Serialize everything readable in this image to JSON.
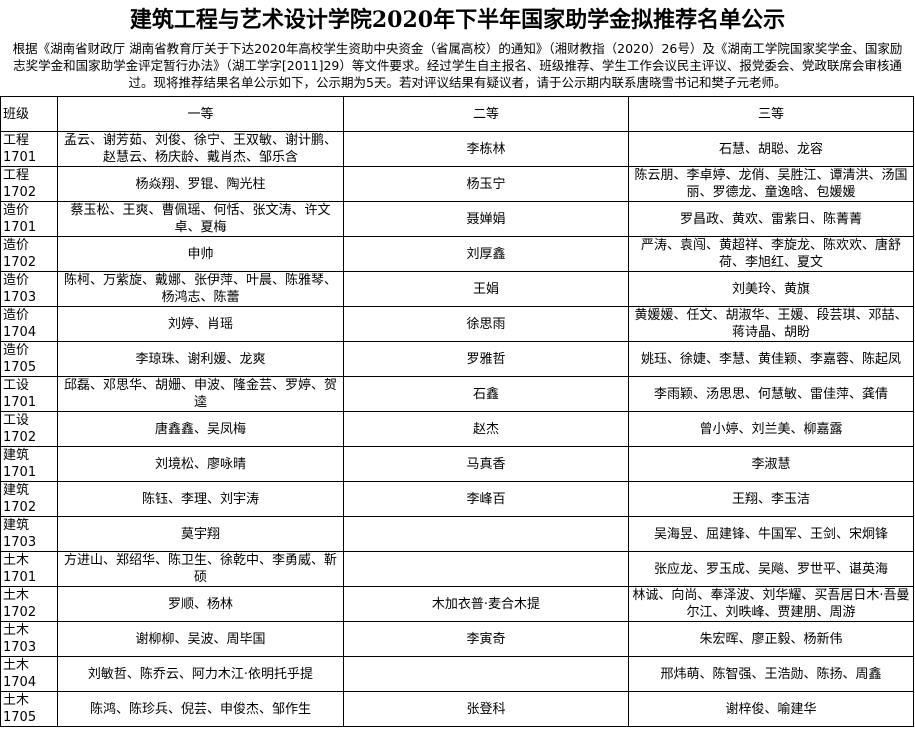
{
  "header": {
    "title": "建筑工程与艺术设计学院2020年下半年国家助学金拟推荐名单公示",
    "intro": "根据《湖南省财政厅 湖南省教育厅关于下达2020年高校学生资助中央资金（省属高校）的通知》（湘财教指（2020）26号）及《湖南工学院国家奖学金、国家励志奖学金和国家助学金评定暂行办法》（湖工学字[2011]29）等文件要求。经过学生自主报名、班级推荐、学生工作会议民主评议、报党委会、党政联席会审核通过。现将推荐结果名单公示如下，公示期为5天。若对评议结果有疑议者，请于公示期内联系唐晓雪书记和樊子元老师。"
  },
  "table": {
    "columns": [
      "班级",
      "一等",
      "二等",
      "三等"
    ],
    "rows": [
      [
        "工程1701",
        "孟云、谢芳茹、刘俊、徐宁、王双敏、谢计鹏、赵慧云、杨庆龄、戴肖杰、邹乐含",
        "李栋林",
        "石慧、胡聪、龙容"
      ],
      [
        "工程1702",
        "杨焱翔、罗锟、陶光柱",
        "杨玉宁",
        "陈云朋、李卓婷、龙俏、吴胜江、谭清洪、汤国丽、罗德龙、童逸晗、包媛媛"
      ],
      [
        "造价1701",
        "蔡玉松、王爽、曹佩瑶、何恬、张文涛、许文卓、夏梅",
        "聂婵娟",
        "罗昌政、黄欢、雷紫日、陈菁菁"
      ],
      [
        "造价1702",
        "申帅",
        "刘厚鑫",
        "严涛、袁闯、黄超祥、李旋龙、陈欢欢、唐舒荷、李旭红、夏文"
      ],
      [
        "造价1703",
        "陈柯、万紫旋、戴娜、张伊萍、叶晨、陈雅琴、杨鸿志、陈蕾",
        "王娟",
        "刘美玲、黄旗"
      ],
      [
        "造价1704",
        "刘婷、肖瑶",
        "徐思雨",
        "黄媛媛、任文、胡淑华、王媛、段芸琪、邓喆、蒋诗晶、胡盼"
      ],
      [
        "造价1705",
        "李琼珠、谢利媛、龙爽",
        "罗雅哲",
        "姚珏、徐婕、李慧、黄佳颖、李嘉蓉、陈起凤"
      ],
      [
        "工设1701",
        "邱磊、邓思华、胡姗、申波、隆金芸、罗婷、贺逵",
        "石鑫",
        "李雨颖、汤思思、何慧敏、雷佳萍、龚倩"
      ],
      [
        "工设1702",
        "唐鑫鑫、吴凤梅",
        "赵杰",
        "曾小婷、刘兰美、柳嘉露"
      ],
      [
        "建筑1701",
        "刘境松、廖咏晴",
        "马真香",
        "李淑慧"
      ],
      [
        "建筑1702",
        "陈钰、李理、刘宇涛",
        "李峰百",
        "王翔、李玉洁"
      ],
      [
        "建筑1703",
        "莫宇翔",
        null,
        "吴海昱、屈建锋、牛国军、王剑、宋炯锋"
      ],
      [
        "土木1701",
        "方进山、郑绍华、陈卫生、徐乾中、李勇威、靳硕",
        null,
        "张应龙、罗玉成、吴飚、罗世平、谌英海"
      ],
      [
        "土木1702",
        "罗顺、杨林",
        "木加衣普·麦合木提",
        "林诚、向尚、奉泽波、刘华耀、买吾居日木·吾曼尔江、刘昳峰、贾建朋、周游"
      ],
      [
        "土木1703",
        "谢柳柳、吴波、周毕国",
        "李寅奇",
        "朱宏晖、廖正毅、杨新伟"
      ],
      [
        "土木1704",
        "刘敏哲、陈乔云、阿力木江·依明托乎提",
        null,
        "邢炜萌、陈智强、王浩勋、陈扬、周鑫"
      ],
      [
        "土木1705",
        "陈鸿、陈珍兵、倪芸、申俊杰、邹作生",
        "张登科",
        "谢梓俊、喻建华"
      ]
    ]
  }
}
